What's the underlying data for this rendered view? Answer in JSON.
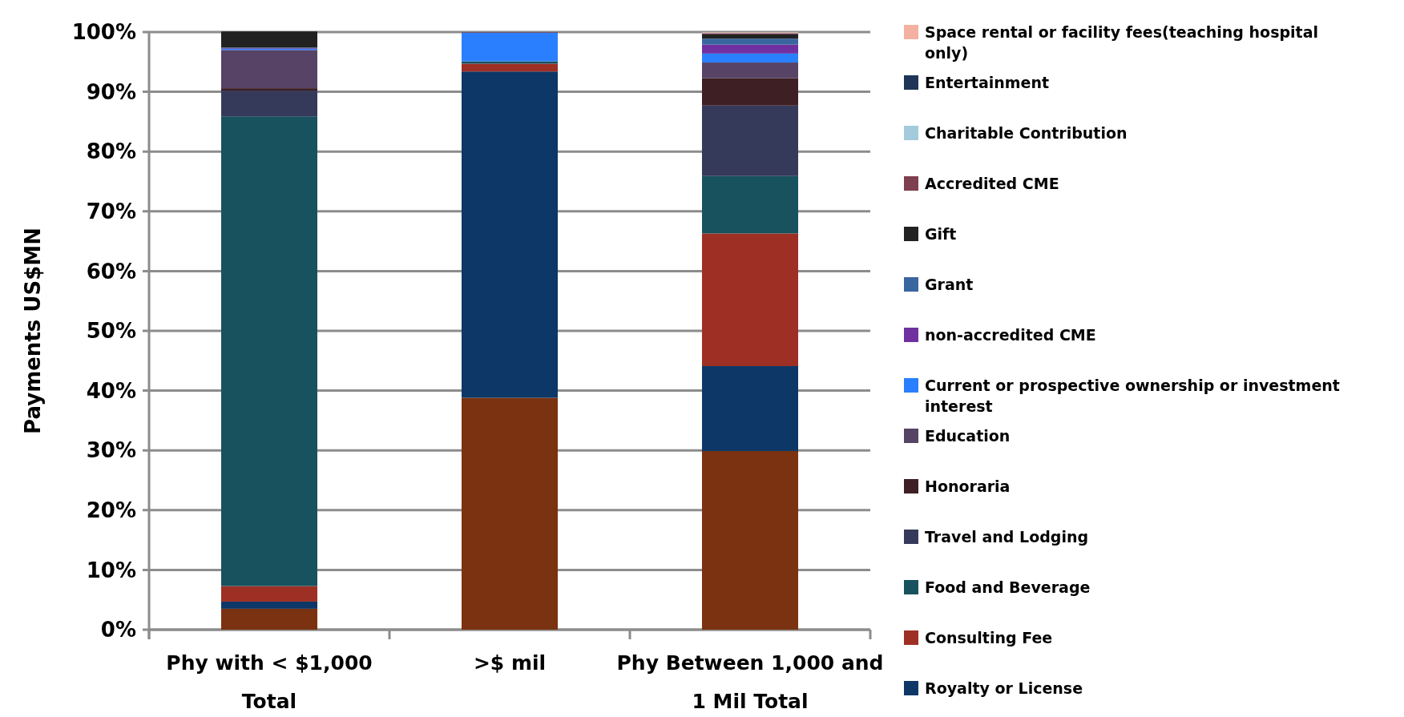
{
  "chart_data": {
    "type": "bar",
    "stacked": true,
    "ylabel": "Payments US$MN",
    "categories": [
      "Phy with  < $1,000 Total",
      ">$ mil",
      "Phy Between  1,000 and 1 Mil Total"
    ],
    "ylim": [
      0,
      100
    ],
    "yticks": [
      {
        "value": 0,
        "label": "0%"
      },
      {
        "value": 10,
        "label": "10%"
      },
      {
        "value": 20,
        "label": "20%"
      },
      {
        "value": 30,
        "label": "30%"
      },
      {
        "value": 40,
        "label": "40%"
      },
      {
        "value": 50,
        "label": "50%"
      },
      {
        "value": 60,
        "label": "60%"
      },
      {
        "value": 70,
        "label": "70%"
      },
      {
        "value": 80,
        "label": "80%"
      },
      {
        "value": 90,
        "label": "90%"
      },
      {
        "value": 100,
        "label": "100%"
      }
    ],
    "grid": "y",
    "legend": "right",
    "series": [
      {
        "color": "#7a3210",
        "values": [
          3.5,
          38.8,
          29.9
        ]
      },
      {
        "name": "Royalty or License",
        "color": "#0c3766",
        "values": [
          1.2,
          54.6,
          14.2
        ]
      },
      {
        "name": "Consulting Fee",
        "color": "#9e2f24",
        "values": [
          2.6,
          1.3,
          22.2
        ]
      },
      {
        "name": "Food and Beverage",
        "color": "#18525e",
        "values": [
          78.6,
          0.4,
          9.6
        ]
      },
      {
        "name": "Travel and Lodging",
        "color": "#363a5a",
        "values": [
          4.3,
          0,
          11.8
        ]
      },
      {
        "name": "Honoraria",
        "color": "#3e1f24",
        "values": [
          0.4,
          0,
          4.6
        ]
      },
      {
        "name": "Education",
        "color": "#564366",
        "values": [
          6.4,
          0,
          2.6
        ]
      },
      {
        "name": "Current or prospective ownership or investment interest",
        "color": "#2a7fff",
        "values": [
          0.2,
          4.8,
          1.5
        ]
      },
      {
        "name": "non-accredited CME",
        "color": "#7030a0",
        "values": [
          0.1,
          0,
          1.5
        ]
      },
      {
        "name": "Grant",
        "color": "#3a66a0",
        "values": [
          0.1,
          0,
          1.0
        ]
      },
      {
        "name": "Gift",
        "color": "#222222",
        "values": [
          2.7,
          0,
          0.7
        ]
      },
      {
        "name": "Accredited CME",
        "color": "#7e3f4e",
        "values": [
          0,
          0.1,
          0.2
        ]
      },
      {
        "name": "Charitable Contribution",
        "color": "#a4cbdc",
        "values": [
          0,
          0,
          0.1
        ]
      },
      {
        "name": "Entertainment",
        "color": "#1f3558",
        "values": [
          0,
          0,
          0
        ]
      },
      {
        "name": "Space rental or facility fees(teaching hospital only)",
        "color": "#f4b0a0",
        "values": [
          0,
          0,
          0.1
        ]
      }
    ]
  }
}
